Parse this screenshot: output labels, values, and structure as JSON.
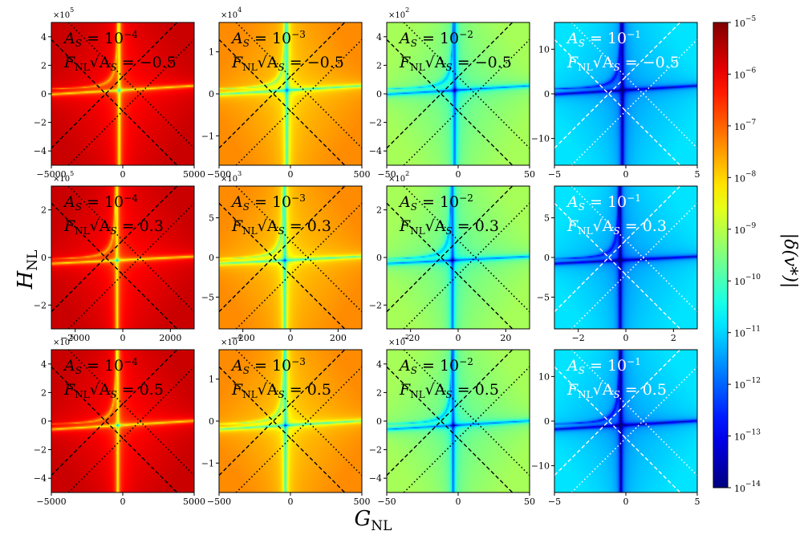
{
  "chart_data": {
    "type": "heatmap",
    "xlabel": "G_NL",
    "ylabel": "H_NL",
    "colorbar": {
      "label": "|δ(v*)|",
      "ticks": [
        "10^-5",
        "10^-6",
        "10^-7",
        "10^-8",
        "10^-9",
        "10^-10",
        "10^-11",
        "10^-12",
        "10^-13",
        "10^-14"
      ],
      "log_range": [
        -14,
        -5
      ],
      "colormap": "jet"
    },
    "panels": [
      {
        "row": 0,
        "col": 0,
        "AS": "10^-4",
        "F": "-0.5",
        "level": -6.2,
        "xlim": [
          -5000,
          5000
        ],
        "ylim": [
          -5,
          5
        ],
        "xticks": [
          "-5000",
          "0",
          "5000"
        ],
        "yticks": [
          "4",
          "2",
          "0",
          "-2",
          "-4"
        ],
        "mult": "×10^5",
        "center": [
          -0.05,
          0.05
        ],
        "guides": "black"
      },
      {
        "row": 0,
        "col": 1,
        "AS": "10^-3",
        "F": "-0.5",
        "level": -7.9,
        "xlim": [
          -500,
          500
        ],
        "ylim": [
          -1.7,
          1.7
        ],
        "xticks": [
          "-500",
          "0",
          "500"
        ],
        "yticks": [
          "1",
          "0",
          "-1"
        ],
        "mult": "×10^4",
        "center": [
          -0.05,
          0.05
        ],
        "guides": "black"
      },
      {
        "row": 0,
        "col": 2,
        "AS": "10^-2",
        "F": "-0.5",
        "level": -9.7,
        "xlim": [
          -50,
          50
        ],
        "ylim": [
          -5,
          5
        ],
        "xticks": [
          "-50",
          "0",
          "50"
        ],
        "yticks": [
          "4",
          "2",
          "0",
          "-2",
          "-4"
        ],
        "mult": "×10^2",
        "center": [
          -0.05,
          0.05
        ],
        "guides": "black"
      },
      {
        "row": 0,
        "col": 3,
        "AS": "10^-1",
        "F": "-0.5",
        "level": -11.4,
        "xlim": [
          -5,
          5
        ],
        "ylim": [
          -16,
          16
        ],
        "xticks": [
          "-5",
          "0",
          "5"
        ],
        "yticks": [
          "10",
          "0",
          "-10"
        ],
        "mult": "",
        "center": [
          -0.05,
          0.05
        ],
        "guides": "white"
      },
      {
        "row": 1,
        "col": 0,
        "AS": "10^-4",
        "F": "0.3",
        "level": -6.2,
        "xlim": [
          -3000,
          3000
        ],
        "ylim": [
          -3,
          3
        ],
        "xticks": [
          "-2000",
          "0",
          "2000"
        ],
        "yticks": [
          "2",
          "0",
          "-2"
        ],
        "mult": "×10^5",
        "center": [
          -0.08,
          -0.04
        ],
        "guides": "black"
      },
      {
        "row": 1,
        "col": 1,
        "AS": "10^-3",
        "F": "0.3",
        "level": -7.9,
        "xlim": [
          -300,
          300
        ],
        "ylim": [
          -9,
          9
        ],
        "xticks": [
          "-200",
          "0",
          "200"
        ],
        "yticks": [
          "5",
          "0",
          "-5"
        ],
        "mult": "×10^3",
        "center": [
          -0.08,
          -0.04
        ],
        "guides": "black"
      },
      {
        "row": 1,
        "col": 2,
        "AS": "10^-2",
        "F": "0.3",
        "level": -9.7,
        "xlim": [
          -30,
          30
        ],
        "ylim": [
          -3,
          3
        ],
        "xticks": [
          "-20",
          "0",
          "20"
        ],
        "yticks": [
          "2",
          "0",
          "-2"
        ],
        "mult": "×10^2",
        "center": [
          -0.08,
          -0.04
        ],
        "guides": "black"
      },
      {
        "row": 1,
        "col": 3,
        "AS": "10^-1",
        "F": "0.3",
        "level": -11.4,
        "xlim": [
          -3,
          3
        ],
        "ylim": [
          -9,
          9
        ],
        "xticks": [
          "-2",
          "0",
          "2"
        ],
        "yticks": [
          "5",
          "0",
          "-5"
        ],
        "mult": "",
        "center": [
          -0.08,
          -0.04
        ],
        "guides": "white"
      },
      {
        "row": 2,
        "col": 0,
        "AS": "10^-4",
        "F": "0.5",
        "level": -6.2,
        "xlim": [
          -5000,
          5000
        ],
        "ylim": [
          -5,
          5
        ],
        "xticks": [
          "-5000",
          "0",
          "5000"
        ],
        "yticks": [
          "4",
          "2",
          "0",
          "-2",
          "-4"
        ],
        "mult": "×10^5",
        "center": [
          -0.07,
          -0.06
        ],
        "guides": "black"
      },
      {
        "row": 2,
        "col": 1,
        "AS": "10^-3",
        "F": "0.5",
        "level": -7.9,
        "xlim": [
          -500,
          500
        ],
        "ylim": [
          -1.7,
          1.7
        ],
        "xticks": [
          "-500",
          "0",
          "500"
        ],
        "yticks": [
          "1",
          "0",
          "-1"
        ],
        "mult": "×10^4",
        "center": [
          -0.07,
          -0.06
        ],
        "guides": "black"
      },
      {
        "row": 2,
        "col": 2,
        "AS": "10^-2",
        "F": "0.5",
        "level": -9.7,
        "xlim": [
          -50,
          50
        ],
        "ylim": [
          -5,
          5
        ],
        "xticks": [
          "-50",
          "0",
          "50"
        ],
        "yticks": [
          "4",
          "2",
          "0",
          "-2",
          "-4"
        ],
        "mult": "×10^2",
        "center": [
          -0.07,
          -0.06
        ],
        "guides": "black"
      },
      {
        "row": 2,
        "col": 3,
        "AS": "10^-1",
        "F": "0.5",
        "level": -11.4,
        "xlim": [
          -5,
          5
        ],
        "ylim": [
          -16,
          16
        ],
        "xticks": [
          "-5",
          "0",
          "5"
        ],
        "yticks": [
          "10",
          "0",
          "-10"
        ],
        "mult": "",
        "center": [
          -0.07,
          -0.06
        ],
        "guides": "white"
      }
    ]
  }
}
